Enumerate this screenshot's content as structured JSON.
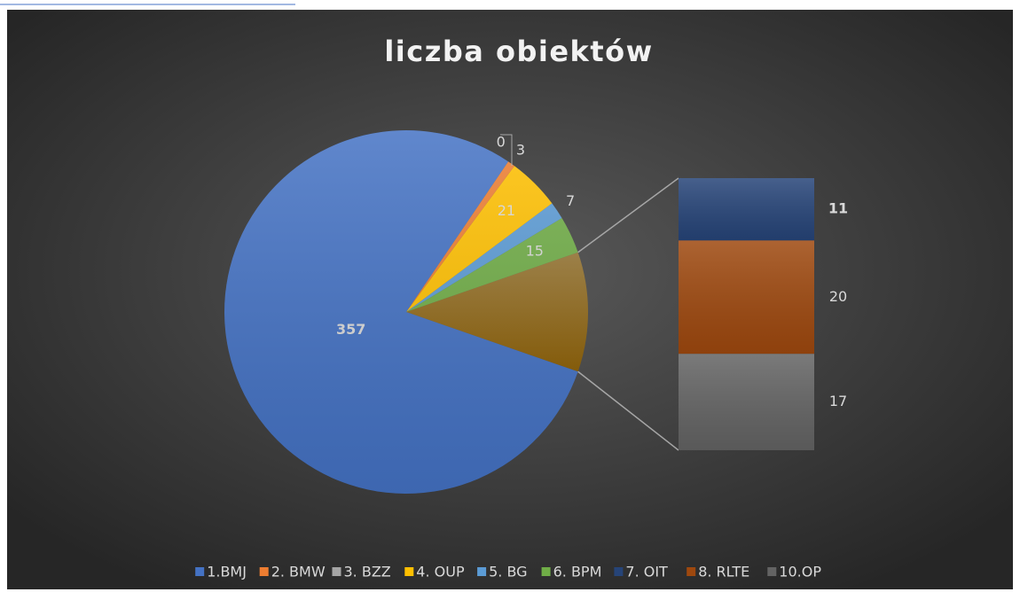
{
  "chart_data": {
    "type": "pie-of-bar",
    "title": "liczba obiektów",
    "categories": [
      "1.BMJ",
      "2. BMW",
      "3. BZZ",
      "4. OUP",
      "5. BG",
      "6. BPM",
      "7. OIT",
      "8. RLTE",
      "10.OP"
    ],
    "values": [
      357,
      3,
      0,
      21,
      7,
      15,
      11,
      20,
      17
    ],
    "colors": [
      "#4472c4",
      "#ed7d31",
      "#a5a5a5",
      "#ffc000",
      "#5b9bd5",
      "#70ad47",
      "#264478",
      "#9e480e",
      "#636363"
    ],
    "second_plot_count": 3,
    "legend": "bottom"
  }
}
